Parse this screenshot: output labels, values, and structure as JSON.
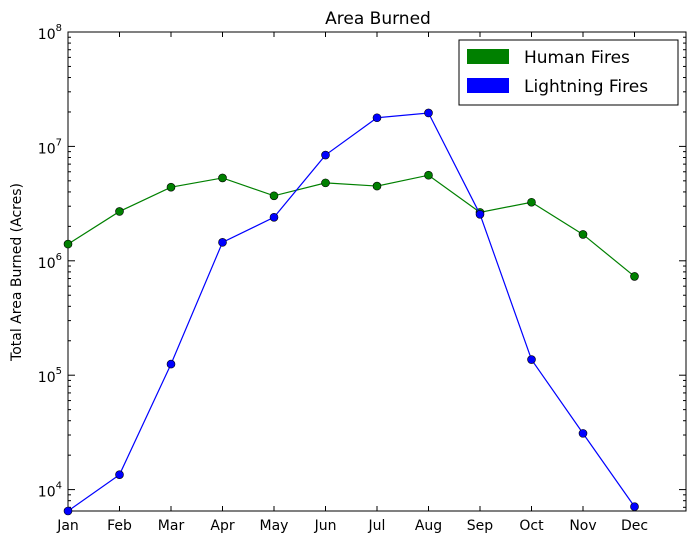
{
  "chart_data": {
    "type": "line",
    "title": "Area Burned",
    "xlabel": "",
    "ylabel": "Total Area Burned (Acres)",
    "yscale": "log",
    "ylim": [
      6500,
      100000000
    ],
    "ytick_values": [
      10000,
      100000,
      1000000,
      10000000,
      100000000
    ],
    "ytick_exponents": [
      "4",
      "5",
      "6",
      "7",
      "8"
    ],
    "ytick_base": "10",
    "categories": [
      "Jan",
      "Feb",
      "Mar",
      "Apr",
      "May",
      "Jun",
      "Jul",
      "Aug",
      "Sep",
      "Oct",
      "Nov",
      "Dec"
    ],
    "legend_position": "top-right",
    "grid": false,
    "series": [
      {
        "name": "Human Fires",
        "color": "#008000",
        "values": [
          1400000,
          2700000,
          4400000,
          5300000,
          3700000,
          4800000,
          4500000,
          5600000,
          2650000,
          3250000,
          1700000,
          730000
        ]
      },
      {
        "name": "Lightning Fires",
        "color": "#0000ff",
        "values": [
          6500,
          13500,
          125000,
          1450000,
          2400000,
          8400000,
          17800000,
          19600000,
          2550000,
          137000,
          31000,
          7100
        ]
      }
    ]
  }
}
